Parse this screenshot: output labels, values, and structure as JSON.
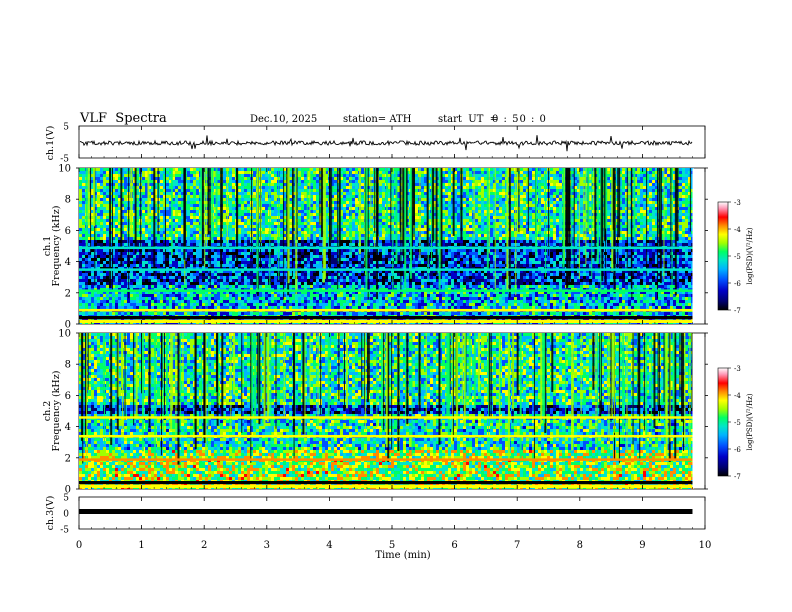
{
  "header": {
    "title": "VLF  Spectra",
    "date": "Dec.10, 2025",
    "station": "station= ATH",
    "start_label": "start  UT  =",
    "start_value": "0 : 50 : 0"
  },
  "chart_data": {
    "type": "heatmap",
    "title": "VLF  Spectra",
    "xlabel": "Time  (min)",
    "xlim": [
      0,
      10
    ],
    "xticks": [
      "0",
      "1",
      "2",
      "3",
      "4",
      "5",
      "6",
      "7",
      "8",
      "9",
      "10"
    ],
    "data_end_min": 9.8,
    "panels": [
      {
        "id": "ch1-waveform",
        "ylabel": "ch.1(V)",
        "kind": "line",
        "ylim": [
          -5,
          5
        ],
        "yticks": [
          "5",
          "-5"
        ],
        "note": "noisy waveform near 0 V with spikes"
      },
      {
        "id": "ch1-spectrogram",
        "ylabel_channel": "ch.1",
        "ylabel": "Frequency  (kHz)",
        "kind": "heatmap",
        "ylim": [
          0,
          10
        ],
        "yticks": [
          "0",
          "2",
          "4",
          "6",
          "8",
          "10"
        ],
        "colorbar": {
          "label": "log(PSD)(V²/Hz)",
          "range": [
            -7,
            -3
          ],
          "ticks": [
            "-3",
            "-4",
            "-5",
            "-6",
            "-7"
          ]
        },
        "bands": [
          {
            "freq_khz": 0.4,
            "level": -3.6
          },
          {
            "freq_khz": 0.9,
            "level": -4.5
          },
          {
            "freq_khz": 2.15,
            "level": -5.0
          },
          {
            "freq_khz": 3.5,
            "level": -5.2
          },
          {
            "freq_khz": 4.9,
            "level": -5.4
          }
        ]
      },
      {
        "id": "ch2-spectrogram",
        "ylabel_channel": "ch.2",
        "ylabel": "Frequency  (kHz)",
        "kind": "heatmap",
        "ylim": [
          0,
          10
        ],
        "yticks": [
          "0",
          "2",
          "4",
          "6",
          "8",
          "10"
        ],
        "colorbar": {
          "label": "log(PSD)(V²/Hz)",
          "range": [
            -7,
            -3
          ],
          "ticks": [
            "-3",
            "-4",
            "-5",
            "-6",
            "-7"
          ]
        },
        "bands": [
          {
            "freq_khz": 0.4,
            "level": -3.6
          },
          {
            "freq_khz": 1.9,
            "level": -4.0
          },
          {
            "freq_khz": 3.4,
            "level": -4.5
          },
          {
            "freq_khz": 4.6,
            "level": -4.2
          }
        ]
      },
      {
        "id": "ch3-waveform",
        "ylabel": "ch.3(V)",
        "kind": "line",
        "ylim": [
          -5,
          5
        ],
        "yticks": [
          "5",
          "0",
          "-5"
        ],
        "note": "flat trace near 0 V"
      }
    ],
    "colormap": [
      "#000000",
      "#00006e",
      "#0000c8",
      "#0050ff",
      "#00b4ff",
      "#00e6c8",
      "#00ff64",
      "#a0ff00",
      "#ffff00",
      "#ff8c00",
      "#ff0000",
      "#ff96b4",
      "#ffffff"
    ]
  }
}
